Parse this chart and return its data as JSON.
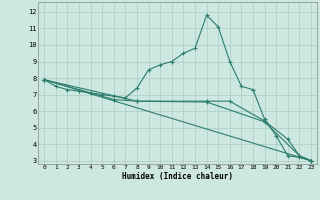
{
  "xlabel": "Humidex (Indice chaleur)",
  "ylabel": "",
  "bg_color": "#cce8e0",
  "grid_color": "#aaccc4",
  "line_color": "#2d7d6f",
  "xlim": [
    -0.5,
    23.5
  ],
  "ylim": [
    2.8,
    12.6
  ],
  "xticks": [
    0,
    1,
    2,
    3,
    4,
    5,
    6,
    7,
    8,
    9,
    10,
    11,
    12,
    13,
    14,
    15,
    16,
    17,
    18,
    19,
    20,
    21,
    22,
    23
  ],
  "yticks": [
    3,
    4,
    5,
    6,
    7,
    8,
    9,
    10,
    11,
    12
  ],
  "lines": [
    {
      "x": [
        0,
        1,
        2,
        3,
        4,
        5,
        6,
        7,
        8,
        9,
        10,
        11,
        12,
        13,
        14,
        15,
        16,
        17,
        18,
        19,
        20,
        21,
        22,
        23
      ],
      "y": [
        7.9,
        7.5,
        7.3,
        7.2,
        7.1,
        7.0,
        6.9,
        6.8,
        7.4,
        8.5,
        8.8,
        9.0,
        9.5,
        9.8,
        11.8,
        11.1,
        9.0,
        7.5,
        7.3,
        5.5,
        4.5,
        3.3,
        3.2,
        3.0
      ]
    },
    {
      "x": [
        0,
        6,
        8,
        14,
        16,
        19,
        21,
        22,
        23
      ],
      "y": [
        7.9,
        6.7,
        6.6,
        6.6,
        6.6,
        5.4,
        4.3,
        3.3,
        3.0
      ]
    },
    {
      "x": [
        0,
        8,
        14,
        19,
        22,
        23
      ],
      "y": [
        7.9,
        6.6,
        6.55,
        5.35,
        3.3,
        3.0
      ]
    },
    {
      "x": [
        0,
        23
      ],
      "y": [
        7.9,
        3.0
      ]
    }
  ]
}
